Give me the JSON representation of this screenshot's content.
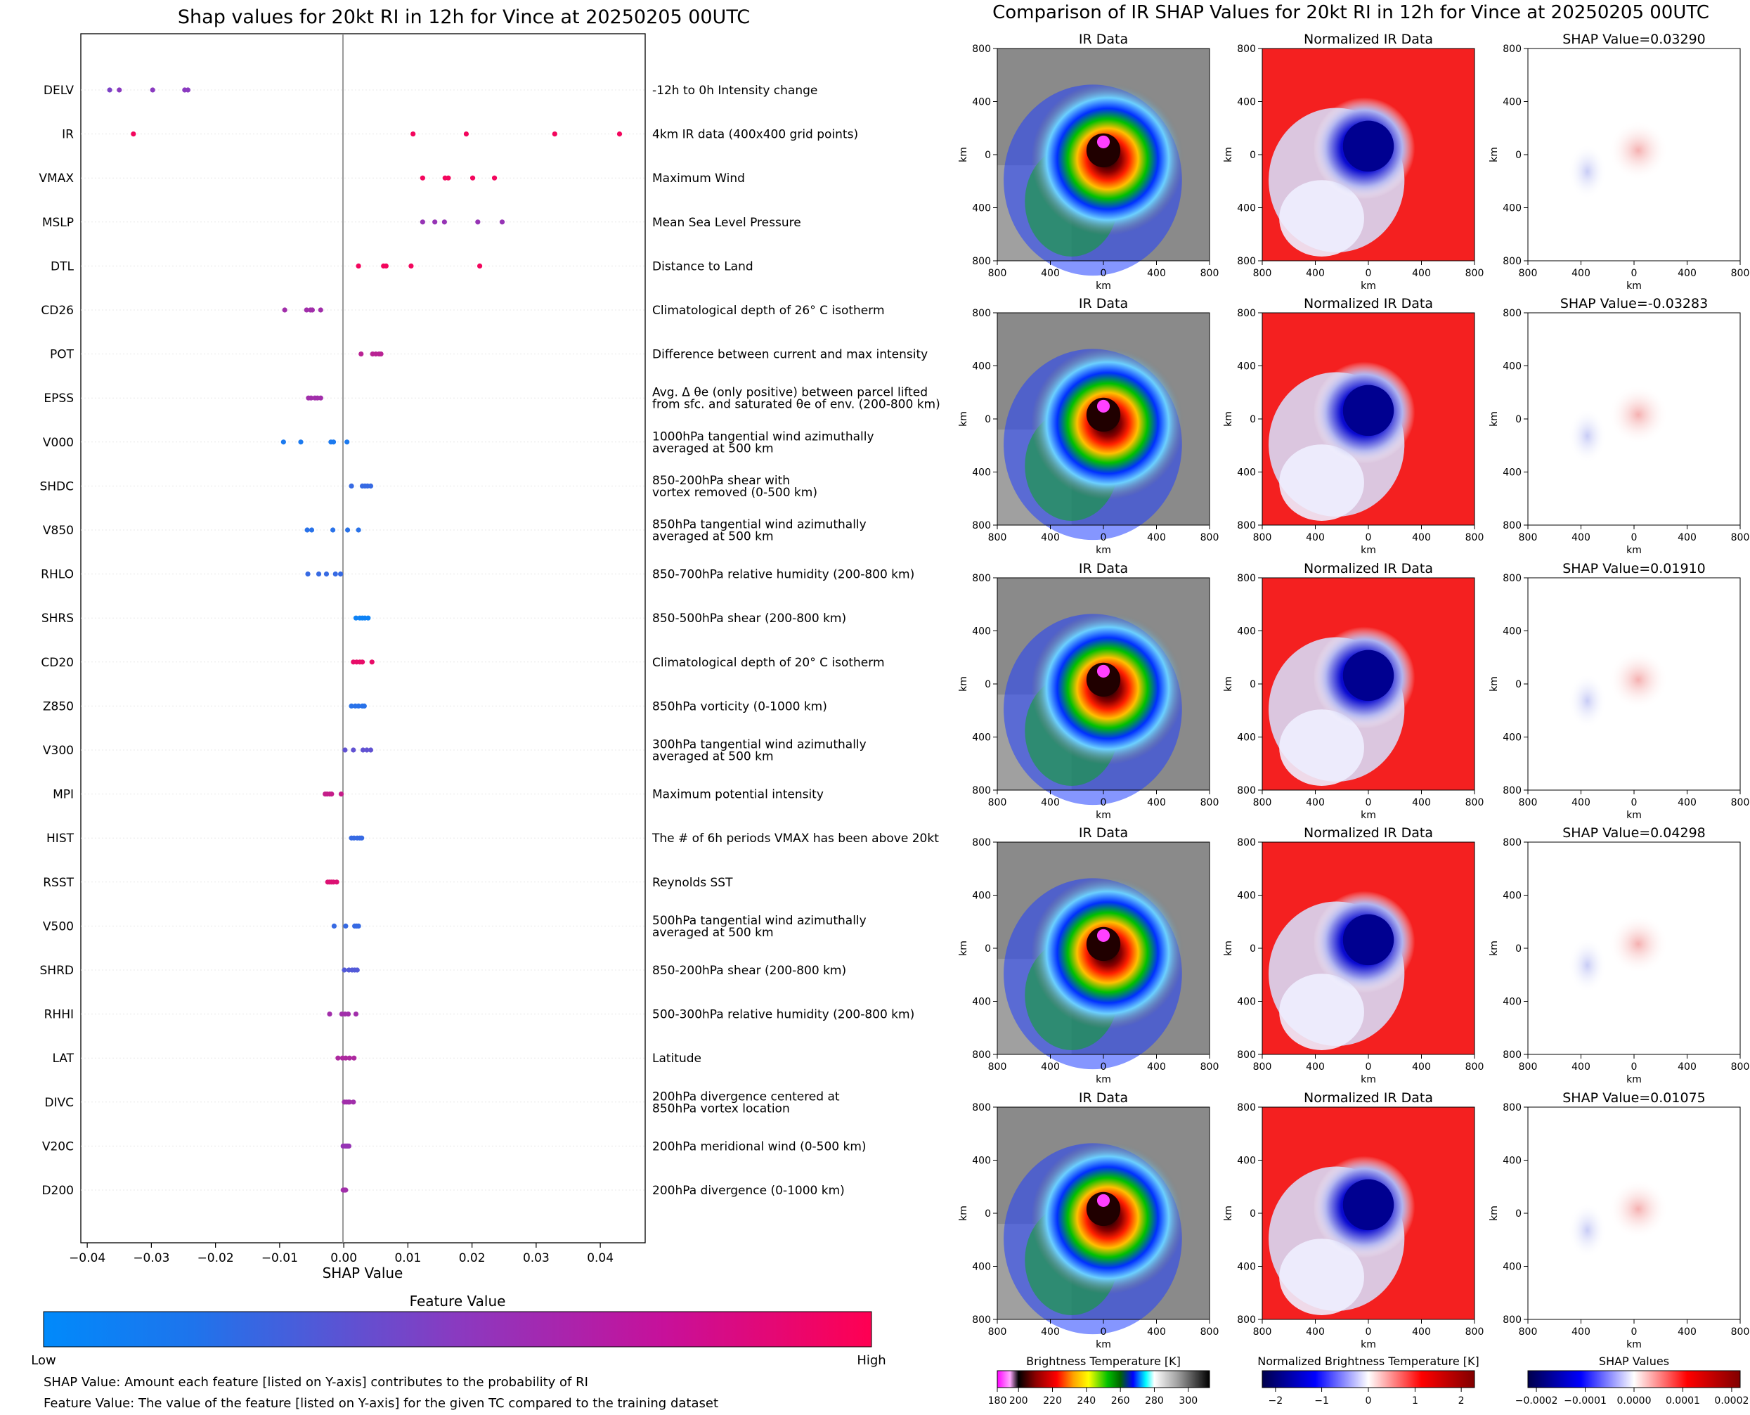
{
  "left_panel": {
    "title": "Shap values for 20kt RI in 12h for Vince at 20250205 00UTC",
    "xlabel": "SHAP Value",
    "xticks": [
      "−0.04",
      "−0.03",
      "−0.02",
      "−0.01",
      "0.00",
      "0.01",
      "0.02",
      "0.03",
      "0.04"
    ],
    "colorbar_title": "Feature Value",
    "colorbar_low": "Low",
    "colorbar_high": "High",
    "note1": "SHAP Value: Amount each feature [listed on Y-axis] contributes to the probability of RI",
    "note2": "Feature Value: The value of the feature [listed on Y-axis] for the given TC compared to the training dataset"
  },
  "right_panel": {
    "title": "Comparison of IR SHAP Values for 20kt RI in 12h for Vince at 20250205 00UTC",
    "col_titles": [
      "IR Data",
      "Normalized IR Data"
    ],
    "shap_titles": [
      "SHAP Value=0.03290",
      "SHAP Value=-0.03283",
      "SHAP Value=0.01910",
      "SHAP Value=0.04298",
      "SHAP Value=0.01075"
    ],
    "axis_label": "km",
    "ticks": [
      "800",
      "400",
      "0",
      "400",
      "800"
    ],
    "cbar1": {
      "title": "Brightness Temperature [K]",
      "ticks": [
        "180",
        "200",
        "220",
        "240",
        "260",
        "280",
        "300"
      ]
    },
    "cbar2": {
      "title": "Normalized Brightness Temperature [K]",
      "ticks": [
        "−2",
        "−1",
        "0",
        "1",
        "2"
      ]
    },
    "cbar3": {
      "title": "SHAP Values",
      "ticks": [
        "−0.0002",
        "−0.0001",
        "0.0000",
        "0.0001",
        "0.0002"
      ]
    }
  },
  "colors": {
    "low": "#008afb",
    "mid": "#8a3ac0",
    "high": "#ff0052"
  },
  "chart_data": {
    "type": "scatter",
    "xlim": [
      -0.041,
      0.047
    ],
    "features": [
      {
        "name": "DELV",
        "desc": [
          "-12h to 0h Intensity change"
        ],
        "points": [
          [
            -0.0365,
            0.45
          ],
          [
            -0.035,
            0.5
          ],
          [
            -0.0298,
            0.5
          ],
          [
            -0.0248,
            0.5
          ],
          [
            -0.0243,
            0.5
          ]
        ]
      },
      {
        "name": "IR",
        "desc": [
          "4km IR data (400x400 grid points)"
        ],
        "points": [
          [
            -0.0328,
            0.95
          ],
          [
            0.0108,
            0.95
          ],
          [
            0.0191,
            0.95
          ],
          [
            0.0329,
            0.95
          ],
          [
            0.043,
            0.95
          ]
        ]
      },
      {
        "name": "VMAX",
        "desc": [
          "Maximum Wind"
        ],
        "points": [
          [
            0.0123,
            0.95
          ],
          [
            0.0158,
            0.95
          ],
          [
            0.0163,
            0.95
          ],
          [
            0.0201,
            0.95
          ],
          [
            0.0235,
            0.95
          ]
        ]
      },
      {
        "name": "MSLP",
        "desc": [
          "Mean Sea Level Pressure"
        ],
        "points": [
          [
            0.0123,
            0.55
          ],
          [
            0.0142,
            0.55
          ],
          [
            0.0157,
            0.55
          ],
          [
            0.0209,
            0.55
          ],
          [
            0.0247,
            0.55
          ]
        ]
      },
      {
        "name": "DTL",
        "desc": [
          "Distance to Land"
        ],
        "points": [
          [
            0.0023,
            0.95
          ],
          [
            0.0062,
            0.95
          ],
          [
            0.0066,
            0.95
          ],
          [
            0.0105,
            0.95
          ],
          [
            0.0212,
            0.95
          ]
        ]
      },
      {
        "name": "CD26",
        "desc": [
          "Climatological depth of 26° C isotherm"
        ],
        "points": [
          [
            -0.0092,
            0.6
          ],
          [
            -0.0058,
            0.6
          ],
          [
            -0.0052,
            0.6
          ],
          [
            -0.0049,
            0.6
          ],
          [
            -0.0036,
            0.6
          ]
        ]
      },
      {
        "name": "POT",
        "desc": [
          "Difference between current and max intensity"
        ],
        "points": [
          [
            0.0027,
            0.7
          ],
          [
            0.0045,
            0.7
          ],
          [
            0.005,
            0.7
          ],
          [
            0.0055,
            0.7
          ],
          [
            0.0058,
            0.7
          ]
        ]
      },
      {
        "name": "EPSS",
        "desc": [
          "Avg. Δ θe (only positive) between parcel lifted",
          "from sfc. and saturated θe of env. (200-800 km)"
        ],
        "points": [
          [
            -0.0055,
            0.6
          ],
          [
            -0.0051,
            0.6
          ],
          [
            -0.0045,
            0.6
          ],
          [
            -0.0041,
            0.6
          ],
          [
            -0.0036,
            0.6
          ]
        ]
      },
      {
        "name": "V000",
        "desc": [
          "1000hPa tangential wind azimuthally",
          "averaged at 500 km"
        ],
        "points": [
          [
            -0.0094,
            0.1
          ],
          [
            -0.0067,
            0.1
          ],
          [
            -0.002,
            0.1
          ],
          [
            -0.0016,
            0.1
          ],
          [
            0.0005,
            0.1
          ]
        ]
      },
      {
        "name": "SHDC",
        "desc": [
          "850-200hPa shear with",
          "vortex removed (0-500 km)"
        ],
        "points": [
          [
            0.0012,
            0.2
          ],
          [
            0.0029,
            0.2
          ],
          [
            0.0033,
            0.2
          ],
          [
            0.0037,
            0.2
          ],
          [
            0.0042,
            0.2
          ]
        ]
      },
      {
        "name": "V850",
        "desc": [
          "850hPa tangential wind azimuthally",
          "averaged at 500 km"
        ],
        "points": [
          [
            -0.0057,
            0.15
          ],
          [
            -0.005,
            0.15
          ],
          [
            -0.0017,
            0.15
          ],
          [
            0.0006,
            0.15
          ],
          [
            0.0023,
            0.15
          ]
        ]
      },
      {
        "name": "RHLO",
        "desc": [
          "850-700hPa relative humidity (200-800 km)"
        ],
        "points": [
          [
            -0.0056,
            0.2
          ],
          [
            -0.0039,
            0.2
          ],
          [
            -0.0027,
            0.2
          ],
          [
            -0.0013,
            0.2
          ],
          [
            -0.0005,
            0.2
          ]
        ]
      },
      {
        "name": "SHRS",
        "desc": [
          "850-500hPa shear (200-800 km)"
        ],
        "points": [
          [
            0.0019,
            0.05
          ],
          [
            0.0025,
            0.05
          ],
          [
            0.0029,
            0.05
          ],
          [
            0.0033,
            0.05
          ],
          [
            0.0038,
            0.05
          ]
        ]
      },
      {
        "name": "CD20",
        "desc": [
          "Climatological depth of 20° C isotherm"
        ],
        "points": [
          [
            0.0015,
            0.9
          ],
          [
            0.002,
            0.9
          ],
          [
            0.0025,
            0.9
          ],
          [
            0.0029,
            0.9
          ],
          [
            0.0044,
            0.9
          ]
        ]
      },
      {
        "name": "Z850",
        "desc": [
          "850hPa vorticity (0-1000 km)"
        ],
        "points": [
          [
            0.0012,
            0.15
          ],
          [
            0.0018,
            0.15
          ],
          [
            0.0023,
            0.15
          ],
          [
            0.0029,
            0.15
          ],
          [
            0.0032,
            0.15
          ]
        ]
      },
      {
        "name": "V300",
        "desc": [
          "300hPa tangential wind azimuthally",
          "averaged at 500 km"
        ],
        "points": [
          [
            0.0002,
            0.35
          ],
          [
            0.0015,
            0.35
          ],
          [
            0.003,
            0.35
          ],
          [
            0.0036,
            0.35
          ],
          [
            0.0042,
            0.35
          ]
        ]
      },
      {
        "name": "MPI",
        "desc": [
          "Maximum potential intensity"
        ],
        "points": [
          [
            -0.0029,
            0.75
          ],
          [
            -0.0026,
            0.75
          ],
          [
            -0.0022,
            0.75
          ],
          [
            -0.0019,
            0.75
          ],
          [
            -0.0004,
            0.75
          ]
        ]
      },
      {
        "name": "HIST",
        "desc": [
          "The # of 6h periods VMAX has been above 20kt"
        ],
        "points": [
          [
            0.0012,
            0.2
          ],
          [
            0.0016,
            0.2
          ],
          [
            0.0021,
            0.2
          ],
          [
            0.0025,
            0.2
          ],
          [
            0.0028,
            0.2
          ]
        ]
      },
      {
        "name": "RSST",
        "desc": [
          "Reynolds SST"
        ],
        "points": [
          [
            -0.0025,
            0.85
          ],
          [
            -0.0022,
            0.85
          ],
          [
            -0.0019,
            0.85
          ],
          [
            -0.0016,
            0.85
          ],
          [
            -0.0011,
            0.85
          ]
        ]
      },
      {
        "name": "V500",
        "desc": [
          "500hPa tangential wind azimuthally",
          "averaged at 500 km"
        ],
        "points": [
          [
            -0.0015,
            0.2
          ],
          [
            0.0003,
            0.2
          ],
          [
            0.0017,
            0.2
          ],
          [
            0.002,
            0.2
          ],
          [
            0.0023,
            0.2
          ]
        ]
      },
      {
        "name": "SHRD",
        "desc": [
          "850-200hPa shear (200-800 km)"
        ],
        "points": [
          [
            0.0001,
            0.3
          ],
          [
            0.0008,
            0.3
          ],
          [
            0.0013,
            0.3
          ],
          [
            0.0017,
            0.3
          ],
          [
            0.0021,
            0.3
          ]
        ]
      },
      {
        "name": "RHHI",
        "desc": [
          "500-300hPa relative humidity (200-800 km)"
        ],
        "points": [
          [
            -0.0022,
            0.6
          ],
          [
            -0.0003,
            0.6
          ],
          [
            0.0002,
            0.6
          ],
          [
            0.0007,
            0.6
          ],
          [
            0.0019,
            0.6
          ]
        ]
      },
      {
        "name": "LAT",
        "desc": [
          "Latitude"
        ],
        "points": [
          [
            -0.0009,
            0.65
          ],
          [
            -0.0002,
            0.65
          ],
          [
            0.0003,
            0.65
          ],
          [
            0.0009,
            0.65
          ],
          [
            0.0016,
            0.65
          ]
        ]
      },
      {
        "name": "DIVC",
        "desc": [
          "200hPa divergence centered at",
          "850hPa vortex location"
        ],
        "points": [
          [
            0.0001,
            0.6
          ],
          [
            0.0004,
            0.6
          ],
          [
            0.0007,
            0.6
          ],
          [
            0.0009,
            0.6
          ],
          [
            0.0015,
            0.6
          ]
        ]
      },
      {
        "name": "V20C",
        "desc": [
          "200hPa meridional wind (0-500 km)"
        ],
        "points": [
          [
            -0.0001,
            0.55
          ],
          [
            0.0002,
            0.55
          ],
          [
            0.0004,
            0.55
          ],
          [
            0.0006,
            0.55
          ],
          [
            0.0008,
            0.55
          ]
        ]
      },
      {
        "name": "D200",
        "desc": [
          "200hPa divergence (0-1000 km)"
        ],
        "points": [
          [
            -0.0001,
            0.6
          ],
          [
            0.0,
            0.6
          ],
          [
            0.0001,
            0.6
          ],
          [
            0.0002,
            0.6
          ],
          [
            0.0003,
            0.6
          ]
        ]
      }
    ]
  }
}
